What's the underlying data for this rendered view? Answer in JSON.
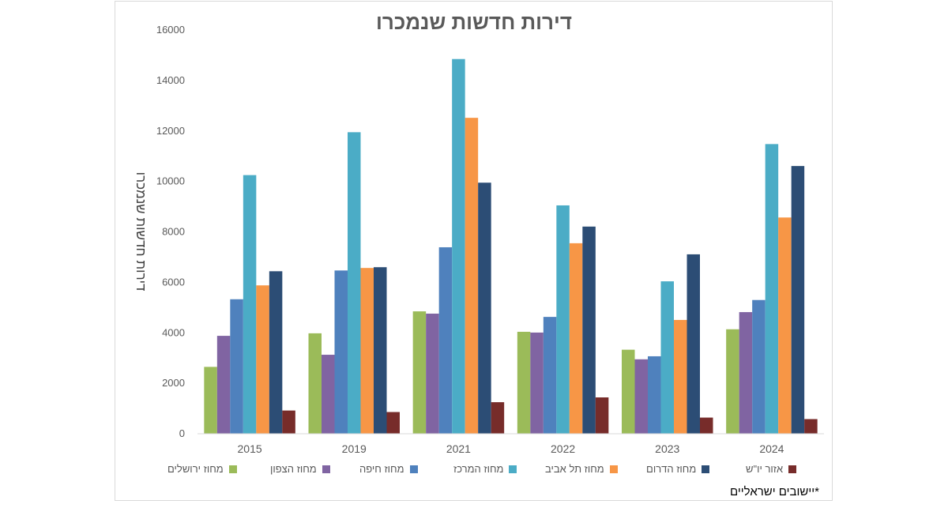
{
  "chart_data": {
    "type": "bar",
    "title": "דירות חדשות שנמכרו",
    "ylabel": "דירות חדשות שנמכרו",
    "xlabel": "",
    "ylim": [
      0,
      16000
    ],
    "yticks": [
      "0",
      "2000",
      "4000",
      "6000",
      "8000",
      "10000",
      "12000",
      "14000",
      "16000"
    ],
    "grid": false,
    "legend_position": "bottom",
    "categories": [
      "2015",
      "2019",
      "2021",
      "2022",
      "2023",
      "2024"
    ],
    "series": [
      {
        "name": "מחוז ירושלים",
        "color": "#9bbb59",
        "values": [
          2650,
          3980,
          4850,
          4040,
          3330,
          4140
        ]
      },
      {
        "name": "מחוז הצפון",
        "color": "#8064a2",
        "values": [
          3880,
          3130,
          4760,
          4010,
          2950,
          4820
        ]
      },
      {
        "name": "מחוז חיפה",
        "color": "#4f81bd",
        "values": [
          5330,
          6470,
          7390,
          4630,
          3070,
          5300
        ]
      },
      {
        "name": "מחוז המרכז",
        "color": "#4bacc6",
        "values": [
          10250,
          11950,
          14850,
          9050,
          6040,
          11480
        ]
      },
      {
        "name": "מחוז תל אביב",
        "color": "#f79646",
        "values": [
          5880,
          6570,
          12520,
          7550,
          4510,
          8570
        ]
      },
      {
        "name": "מחוז הדרום",
        "color": "#2c4d75",
        "values": [
          6440,
          6600,
          9950,
          8210,
          7110,
          10610
        ]
      },
      {
        "name": "אזור יו\"ש",
        "color": "#772c2a",
        "values": [
          920,
          860,
          1250,
          1440,
          640,
          580
        ]
      }
    ]
  },
  "footnote": "*יישובים ישראליים"
}
